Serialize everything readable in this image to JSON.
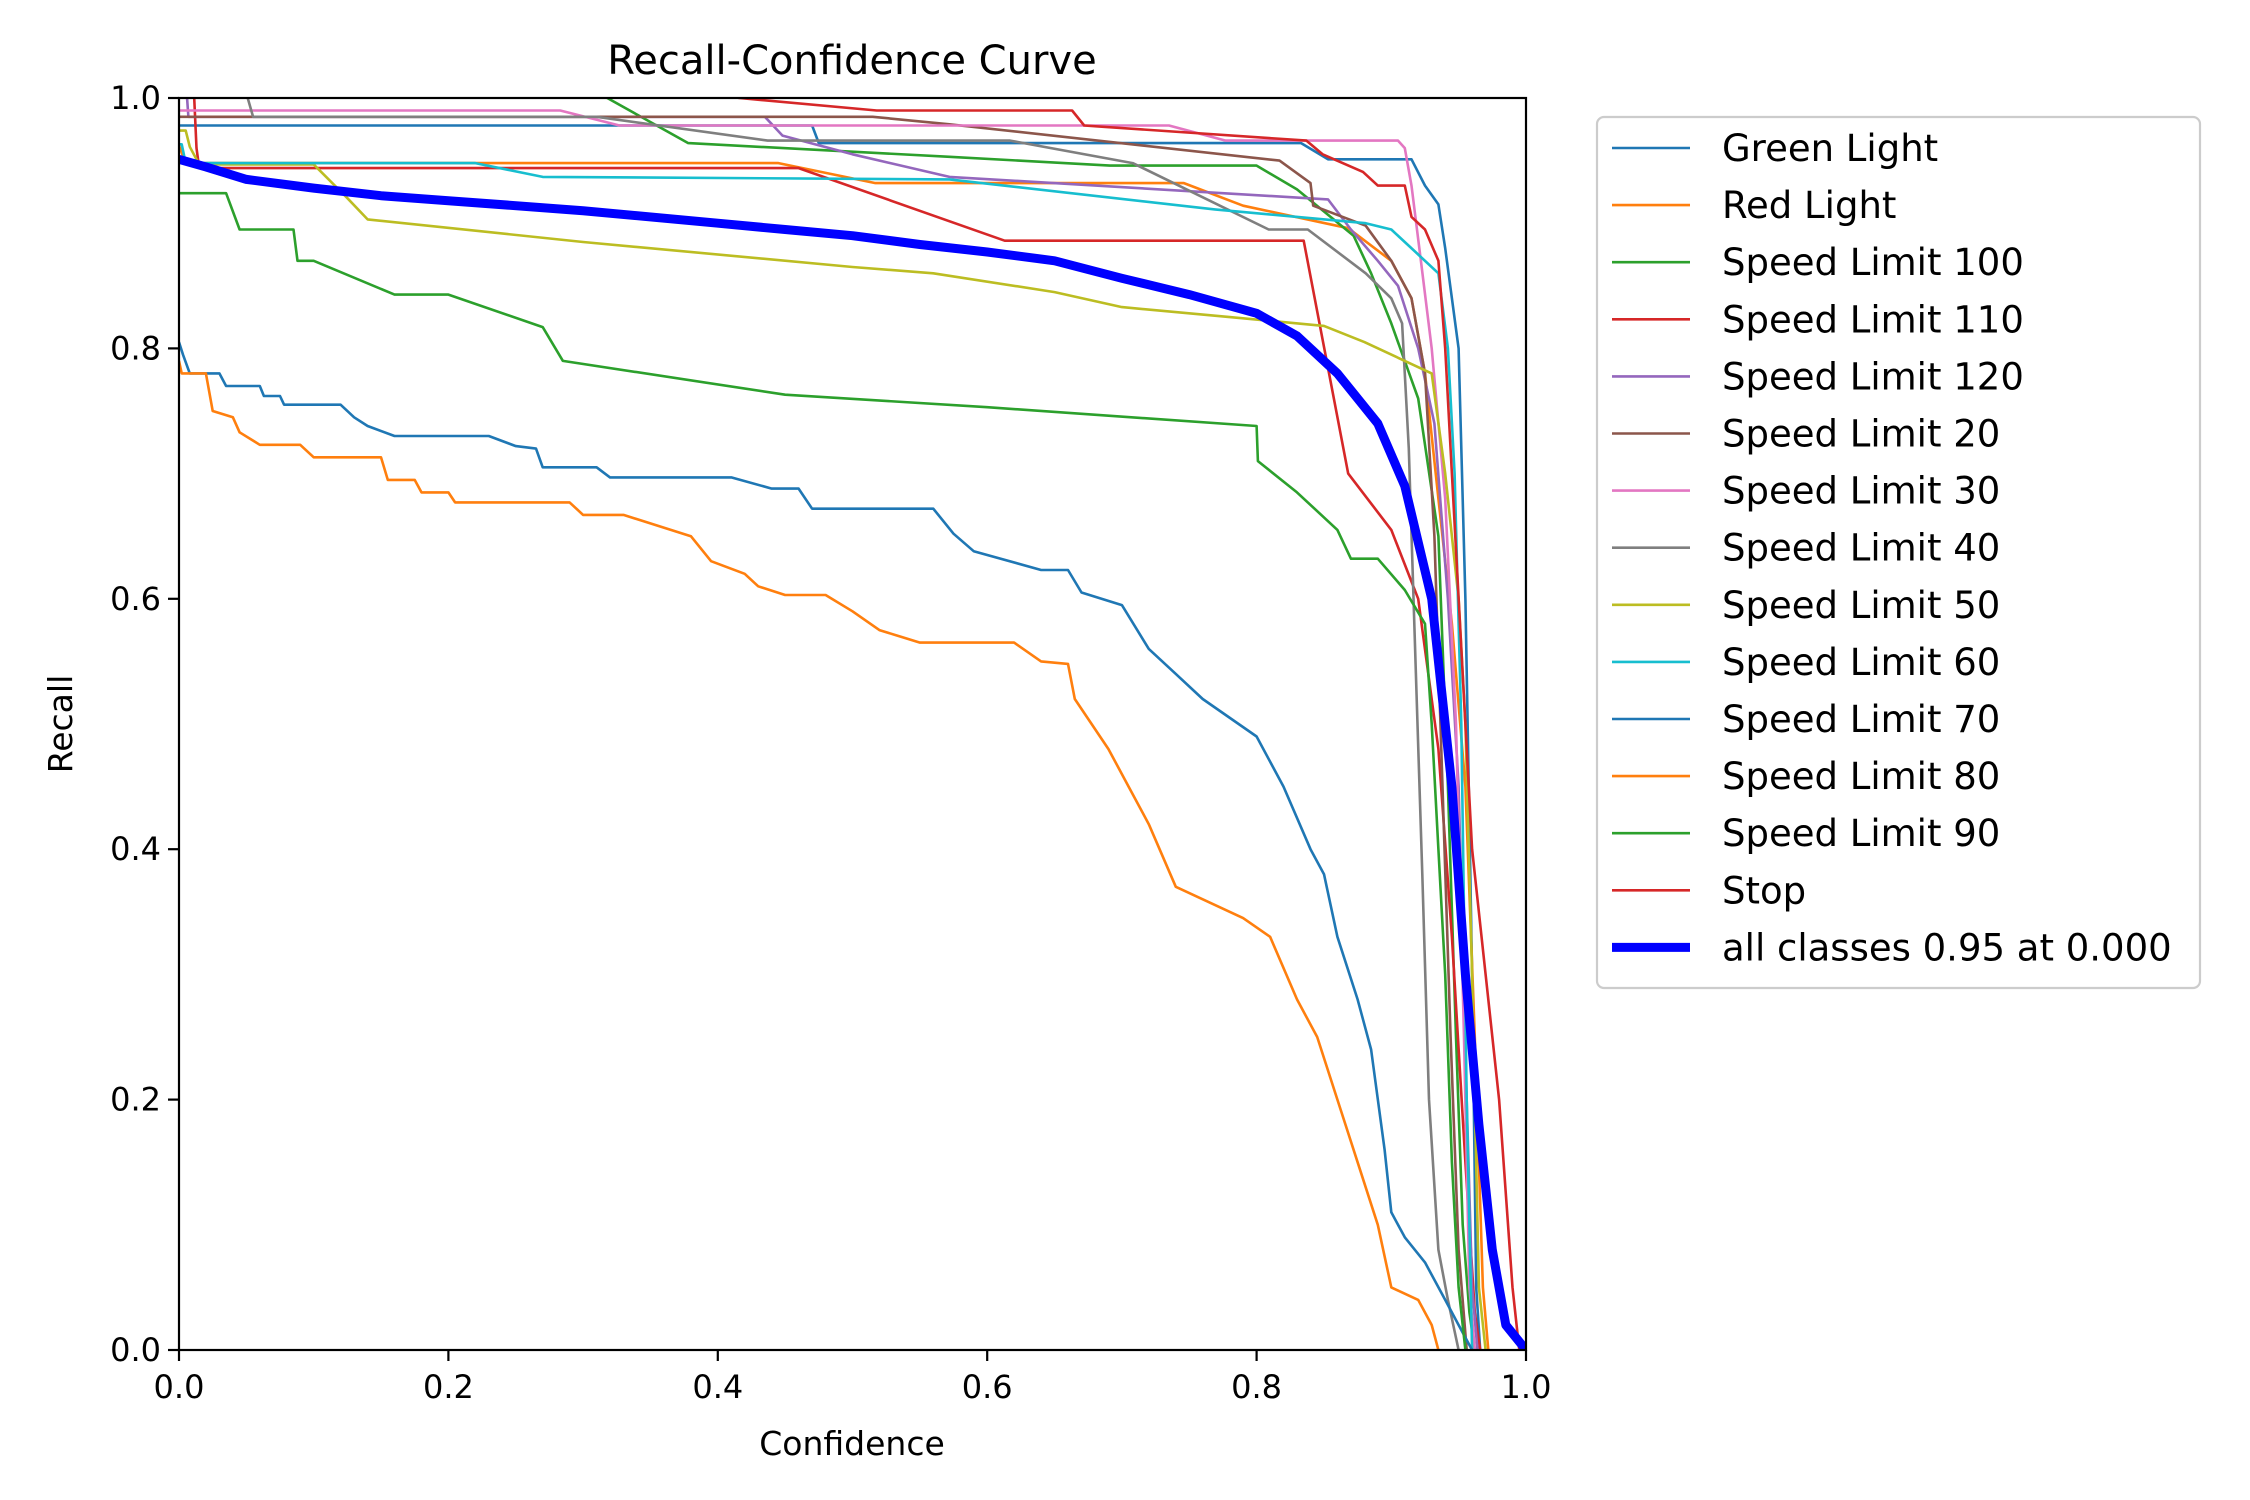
{
  "chart_data": {
    "type": "line",
    "title": "Recall-Confidence Curve",
    "xlabel": "Confidence",
    "ylabel": "Recall",
    "xlim": [
      0.0,
      1.0
    ],
    "ylim": [
      0.0,
      1.0
    ],
    "xticks": [
      "0.0",
      "0.2",
      "0.4",
      "0.6",
      "0.8",
      "1.0"
    ],
    "yticks": [
      "0.0",
      "0.2",
      "0.4",
      "0.6",
      "0.8",
      "1.0"
    ],
    "grid": false,
    "legend_position": "outside-right-top",
    "series": [
      {
        "name": "Green Light",
        "color": "#1f77b4",
        "width": "thin",
        "x": [
          0.0,
          0.47,
          0.475,
          0.833,
          0.853,
          0.915,
          0.925,
          0.935,
          0.94,
          0.945,
          0.95,
          0.955,
          0.96,
          0.963,
          0.966
        ],
        "y": [
          0.978,
          0.978,
          0.964,
          0.964,
          0.951,
          0.951,
          0.93,
          0.915,
          0.88,
          0.84,
          0.8,
          0.6,
          0.3,
          0.05,
          0.0
        ]
      },
      {
        "name": "Red Light",
        "color": "#ff7f0e",
        "width": "thin",
        "x": [
          0.0,
          0.005,
          0.445,
          0.517,
          0.746,
          0.79,
          0.868,
          0.9,
          0.915,
          0.925,
          0.935,
          0.945,
          0.955,
          0.962,
          0.968,
          0.972
        ],
        "y": [
          0.962,
          0.948,
          0.948,
          0.932,
          0.932,
          0.914,
          0.896,
          0.87,
          0.84,
          0.78,
          0.68,
          0.58,
          0.45,
          0.25,
          0.05,
          0.0
        ]
      },
      {
        "name": "Speed Limit 100",
        "color": "#2ca02c",
        "width": "thin",
        "x": [
          0.3,
          0.318,
          0.378,
          0.572,
          0.691,
          0.8,
          0.83,
          0.872,
          0.885,
          0.9,
          0.92,
          0.935,
          0.942,
          0.948,
          0.953,
          0.958,
          0.962
        ],
        "y": [
          1.03,
          1.0,
          0.964,
          0.953,
          0.946,
          0.946,
          0.927,
          0.89,
          0.86,
          0.82,
          0.76,
          0.65,
          0.45,
          0.25,
          0.1,
          0.03,
          0.0
        ]
      },
      {
        "name": "Speed Limit 110",
        "color": "#d62728",
        "width": "thin",
        "x": [
          0.01,
          0.013,
          0.015,
          0.46,
          0.613,
          0.835,
          0.868,
          0.9,
          0.92,
          0.935,
          0.945,
          0.955,
          0.962,
          0.966
        ],
        "y": [
          1.03,
          0.96,
          0.944,
          0.944,
          0.886,
          0.886,
          0.7,
          0.655,
          0.6,
          0.48,
          0.33,
          0.15,
          0.03,
          0.0
        ]
      },
      {
        "name": "Speed Limit 120",
        "color": "#9467bd",
        "width": "thin",
        "x": [
          0.004,
          0.007,
          0.435,
          0.448,
          0.5,
          0.572,
          0.853,
          0.87,
          0.89,
          0.905,
          0.92,
          0.932,
          0.942,
          0.95,
          0.956,
          0.96,
          0.964
        ],
        "y": [
          1.03,
          0.985,
          0.985,
          0.97,
          0.955,
          0.937,
          0.919,
          0.895,
          0.87,
          0.85,
          0.8,
          0.74,
          0.6,
          0.45,
          0.2,
          0.05,
          0.0
        ]
      },
      {
        "name": "Speed Limit 20",
        "color": "#8c564b",
        "width": "thin",
        "x": [
          0.0,
          0.515,
          0.572,
          0.817,
          0.84,
          0.842,
          0.881,
          0.9,
          0.915,
          0.925,
          0.932,
          0.938,
          0.944,
          0.95,
          0.956
        ],
        "y": [
          0.985,
          0.985,
          0.979,
          0.95,
          0.932,
          0.914,
          0.898,
          0.87,
          0.84,
          0.78,
          0.65,
          0.45,
          0.25,
          0.08,
          0.0
        ]
      },
      {
        "name": "Speed Limit 30",
        "color": "#e377c2",
        "width": "thin",
        "x": [
          0.0,
          0.283,
          0.327,
          0.735,
          0.777,
          0.905,
          0.91,
          0.915,
          0.922,
          0.93,
          0.94,
          0.948,
          0.954,
          0.958,
          0.962
        ],
        "y": [
          0.99,
          0.99,
          0.978,
          0.978,
          0.966,
          0.966,
          0.96,
          0.93,
          0.87,
          0.8,
          0.68,
          0.5,
          0.25,
          0.05,
          0.0
        ]
      },
      {
        "name": "Speed Limit 40",
        "color": "#7f7f7f",
        "width": "thin",
        "x": [
          0.05,
          0.051,
          0.055,
          0.31,
          0.437,
          0.617,
          0.708,
          0.809,
          0.838,
          0.881,
          0.9,
          0.908,
          0.913,
          0.918,
          0.923,
          0.928,
          0.935,
          0.942,
          0.95
        ],
        "y": [
          1.03,
          1.0,
          0.985,
          0.985,
          0.966,
          0.966,
          0.948,
          0.895,
          0.895,
          0.86,
          0.84,
          0.82,
          0.72,
          0.55,
          0.38,
          0.2,
          0.08,
          0.04,
          0.0
        ]
      },
      {
        "name": "Speed Limit 50",
        "color": "#bcbd22",
        "width": "thin",
        "x": [
          0.0,
          0.005,
          0.008,
          0.015,
          0.1,
          0.125,
          0.14,
          0.3,
          0.5,
          0.56,
          0.65,
          0.7,
          0.78,
          0.85,
          0.88,
          0.91,
          0.93,
          0.94,
          0.95,
          0.955,
          0.96,
          0.965,
          0.97
        ],
        "y": [
          0.974,
          0.974,
          0.961,
          0.947,
          0.947,
          0.92,
          0.903,
          0.885,
          0.865,
          0.86,
          0.845,
          0.833,
          0.825,
          0.818,
          0.805,
          0.79,
          0.78,
          0.7,
          0.6,
          0.5,
          0.3,
          0.05,
          0.0
        ]
      },
      {
        "name": "Speed Limit 60",
        "color": "#17becf",
        "width": "thin",
        "x": [
          0.0,
          0.002,
          0.005,
          0.22,
          0.27,
          0.572,
          0.769,
          0.881,
          0.9,
          0.92,
          0.935,
          0.942,
          0.947,
          0.952,
          0.956,
          0.96
        ],
        "y": [
          0.963,
          0.963,
          0.948,
          0.948,
          0.937,
          0.935,
          0.911,
          0.9,
          0.895,
          0.875,
          0.86,
          0.8,
          0.7,
          0.5,
          0.2,
          0.0
        ]
      },
      {
        "name": "Speed Limit 70",
        "color": "#1f77b4",
        "width": "thin",
        "x": [
          0.0,
          0.003,
          0.008,
          0.03,
          0.035,
          0.06,
          0.063,
          0.075,
          0.078,
          0.12,
          0.13,
          0.14,
          0.16,
          0.23,
          0.25,
          0.265,
          0.27,
          0.31,
          0.32,
          0.41,
          0.44,
          0.46,
          0.47,
          0.56,
          0.575,
          0.59,
          0.64,
          0.66,
          0.67,
          0.7,
          0.72,
          0.74,
          0.76,
          0.8,
          0.82,
          0.84,
          0.85,
          0.86,
          0.875,
          0.885,
          0.895,
          0.9,
          0.91,
          0.925,
          0.94,
          0.95,
          0.96
        ],
        "y": [
          0.805,
          0.795,
          0.78,
          0.78,
          0.77,
          0.77,
          0.762,
          0.762,
          0.755,
          0.755,
          0.745,
          0.738,
          0.73,
          0.73,
          0.722,
          0.72,
          0.705,
          0.705,
          0.697,
          0.697,
          0.688,
          0.688,
          0.672,
          0.672,
          0.652,
          0.638,
          0.623,
          0.623,
          0.605,
          0.595,
          0.56,
          0.54,
          0.52,
          0.49,
          0.45,
          0.4,
          0.38,
          0.33,
          0.28,
          0.24,
          0.16,
          0.11,
          0.09,
          0.07,
          0.04,
          0.02,
          0.0
        ]
      },
      {
        "name": "Speed Limit 80",
        "color": "#ff7f0e",
        "width": "thin",
        "x": [
          0.0,
          0.002,
          0.02,
          0.025,
          0.04,
          0.045,
          0.06,
          0.09,
          0.1,
          0.15,
          0.155,
          0.175,
          0.18,
          0.2,
          0.205,
          0.29,
          0.3,
          0.33,
          0.38,
          0.395,
          0.42,
          0.43,
          0.45,
          0.48,
          0.5,
          0.52,
          0.55,
          0.62,
          0.64,
          0.66,
          0.665,
          0.69,
          0.705,
          0.72,
          0.74,
          0.79,
          0.81,
          0.83,
          0.845,
          0.86,
          0.875,
          0.89,
          0.9,
          0.92,
          0.93,
          0.935
        ],
        "y": [
          0.79,
          0.78,
          0.78,
          0.75,
          0.745,
          0.733,
          0.723,
          0.723,
          0.713,
          0.713,
          0.695,
          0.695,
          0.685,
          0.685,
          0.677,
          0.677,
          0.667,
          0.667,
          0.65,
          0.63,
          0.62,
          0.61,
          0.603,
          0.603,
          0.59,
          0.575,
          0.565,
          0.565,
          0.55,
          0.548,
          0.52,
          0.48,
          0.45,
          0.42,
          0.37,
          0.345,
          0.33,
          0.28,
          0.25,
          0.2,
          0.15,
          0.1,
          0.05,
          0.04,
          0.02,
          0.0
        ]
      },
      {
        "name": "Speed Limit 90",
        "color": "#2ca02c",
        "width": "thin",
        "x": [
          0.0,
          0.035,
          0.045,
          0.085,
          0.088,
          0.1,
          0.16,
          0.2,
          0.27,
          0.285,
          0.45,
          0.6,
          0.8,
          0.801,
          0.83,
          0.86,
          0.87,
          0.89,
          0.91,
          0.925,
          0.93,
          0.935,
          0.94,
          0.945,
          0.95,
          0.955
        ],
        "y": [
          0.924,
          0.924,
          0.895,
          0.895,
          0.87,
          0.87,
          0.843,
          0.843,
          0.817,
          0.79,
          0.763,
          0.753,
          0.738,
          0.71,
          0.685,
          0.655,
          0.632,
          0.632,
          0.607,
          0.58,
          0.5,
          0.4,
          0.3,
          0.15,
          0.05,
          0.0
        ]
      },
      {
        "name": "Stop",
        "color": "#d62728",
        "width": "thin",
        "x": [
          0.3,
          0.416,
          0.518,
          0.663,
          0.672,
          0.837,
          0.849,
          0.879,
          0.89,
          0.91,
          0.915,
          0.925,
          0.935,
          0.94,
          0.945,
          0.955,
          0.96,
          0.97,
          0.98,
          0.99,
          0.995
        ],
        "y": [
          1.02,
          1.0,
          0.99,
          0.99,
          0.978,
          0.966,
          0.955,
          0.941,
          0.93,
          0.93,
          0.905,
          0.895,
          0.87,
          0.8,
          0.7,
          0.5,
          0.4,
          0.3,
          0.2,
          0.05,
          0.0
        ]
      },
      {
        "name": "all classes 0.95 at 0.000",
        "color": "#0000ff",
        "width": "thick",
        "x": [
          0.0,
          0.02,
          0.05,
          0.1,
          0.15,
          0.2,
          0.3,
          0.4,
          0.45,
          0.5,
          0.55,
          0.6,
          0.65,
          0.7,
          0.75,
          0.8,
          0.83,
          0.86,
          0.89,
          0.91,
          0.93,
          0.945,
          0.955,
          0.965,
          0.975,
          0.985,
          1.0
        ],
        "y": [
          0.951,
          0.945,
          0.935,
          0.928,
          0.922,
          0.918,
          0.91,
          0.9,
          0.895,
          0.89,
          0.883,
          0.877,
          0.87,
          0.856,
          0.843,
          0.828,
          0.81,
          0.78,
          0.74,
          0.69,
          0.6,
          0.45,
          0.3,
          0.18,
          0.08,
          0.02,
          0.0
        ]
      }
    ]
  }
}
